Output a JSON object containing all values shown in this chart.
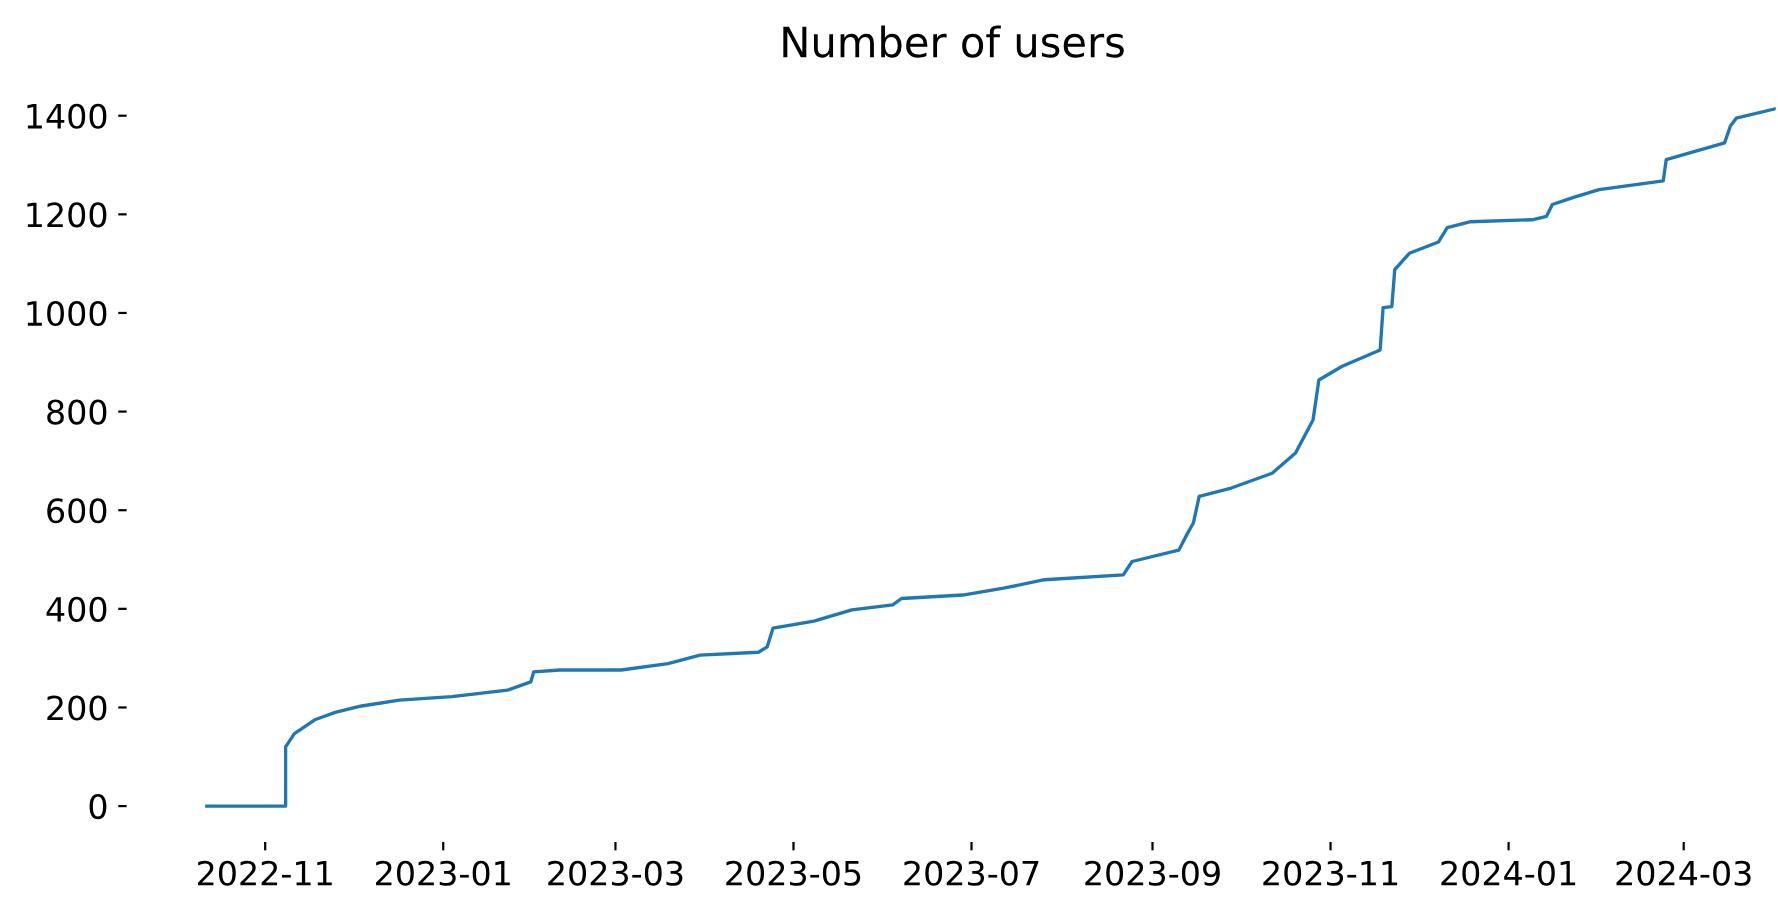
{
  "chart_data": {
    "type": "line",
    "title": "Number of users",
    "x": [
      "2022-10-12",
      "2022-11-08",
      "2022-11-08",
      "2022-11-11",
      "2022-11-18",
      "2022-11-25",
      "2022-12-04",
      "2022-12-17",
      "2023-01-04",
      "2023-01-23",
      "2023-01-31",
      "2023-02-01",
      "2023-02-10",
      "2023-03-03",
      "2023-03-19",
      "2023-03-30",
      "2023-04-19",
      "2023-04-22",
      "2023-04-24",
      "2023-05-08",
      "2023-05-21",
      "2023-06-04",
      "2023-06-07",
      "2023-06-28",
      "2023-07-12",
      "2023-07-26",
      "2023-08-22",
      "2023-08-25",
      "2023-09-10",
      "2023-09-13",
      "2023-09-15",
      "2023-09-17",
      "2023-09-28",
      "2023-10-12",
      "2023-10-20",
      "2023-10-26",
      "2023-10-28",
      "2023-11-05",
      "2023-11-18",
      "2023-11-19",
      "2023-11-22",
      "2023-11-23",
      "2023-11-28",
      "2023-12-08",
      "2023-12-11",
      "2023-12-19",
      "2024-01-09",
      "2024-01-14",
      "2024-01-16",
      "2024-01-23",
      "2024-02-01",
      "2024-02-23",
      "2024-02-24",
      "2024-03-15",
      "2024-03-17",
      "2024-03-19",
      "2024-04-02"
    ],
    "series": [
      {
        "color": "#1f77b4",
        "values": [
          0,
          0,
          120,
          147,
          175,
          190,
          203,
          215,
          222,
          235,
          252,
          272,
          276,
          276,
          289,
          306,
          312,
          323,
          361,
          375,
          398,
          408,
          421,
          428,
          442,
          459,
          469,
          496,
          519,
          553,
          574,
          628,
          645,
          675,
          716,
          783,
          864,
          892,
          925,
          1011,
          1013,
          1088,
          1121,
          1144,
          1173,
          1185,
          1189,
          1196,
          1220,
          1234,
          1250,
          1268,
          1311,
          1345,
          1379,
          1395,
          1415
        ]
      }
    ],
    "xticks": [
      {
        "value": "2022-11-01",
        "label": "2022-11"
      },
      {
        "value": "2023-01-01",
        "label": "2023-01"
      },
      {
        "value": "2023-03-01",
        "label": "2023-03"
      },
      {
        "value": "2023-05-01",
        "label": "2023-05"
      },
      {
        "value": "2023-07-01",
        "label": "2023-07"
      },
      {
        "value": "2023-09-01",
        "label": "2023-09"
      },
      {
        "value": "2023-11-01",
        "label": "2023-11"
      },
      {
        "value": "2024-01-01",
        "label": "2024-01"
      },
      {
        "value": "2024-03-01",
        "label": "2024-03"
      }
    ],
    "yticks": [
      0,
      200,
      400,
      600,
      800,
      1000,
      1200,
      1400
    ],
    "xlim": [
      "2022-09-15",
      "2024-04-02"
    ],
    "ylim": [
      -70,
      1485
    ],
    "grid": false,
    "legend": false
  }
}
